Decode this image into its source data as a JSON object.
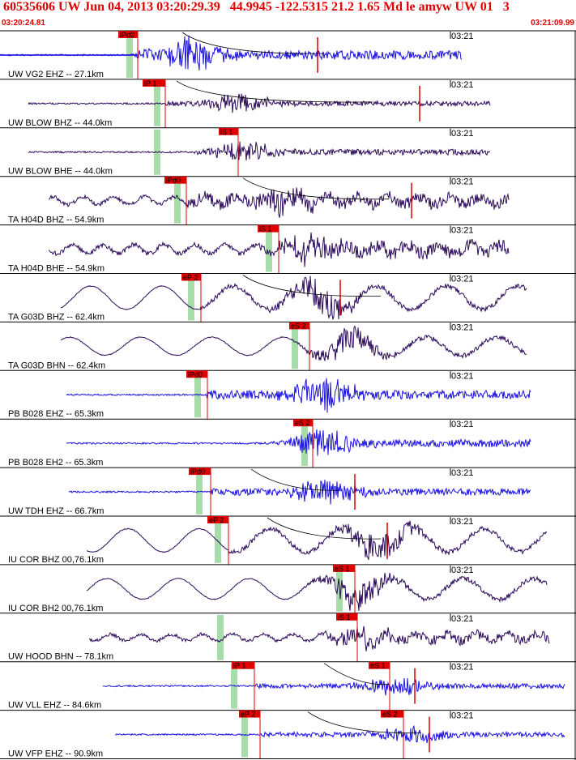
{
  "header": {
    "title": "60535606 UW Jun 04, 2013 03:20:29.39   44.9945 -122.5315 21.2 1.65 Md le amyw UW 01   3",
    "start_time": "03:20:24.81",
    "end_time": "03:21:09.99"
  },
  "chart_data": {
    "type": "line",
    "x_axis": {
      "start": "03:20:24.81",
      "end": "03:21:09.99",
      "tick_label": "03:21"
    },
    "colors": {
      "dark_trace": "#2b0a5a",
      "blue_trace": "#1a10e0",
      "pick": "#e00000",
      "window": "#a8dca8",
      "grid": "#000000"
    },
    "traces": [
      {
        "label": "UW VG2 EHZ -- 27.1km",
        "color": "blue_trace",
        "picks": [
          {
            "label": "iPd0"
          }
        ]
      },
      {
        "label": "UW BLOW BHZ -- 44.0km",
        "color": "dark_trace",
        "picks": [
          {
            "label": "iP 1"
          }
        ]
      },
      {
        "label": "UW BLOW BHE -- 44.0km",
        "color": "dark_trace",
        "picks": [
          {
            "label": "iS 1"
          }
        ]
      },
      {
        "label": "TA H04D BHZ -- 54.9km",
        "color": "dark_trace",
        "picks": [
          {
            "label": "iPd0"
          }
        ]
      },
      {
        "label": "TA H04D BHE -- 54.9km",
        "color": "dark_trace",
        "picks": [
          {
            "label": "iS 1"
          }
        ]
      },
      {
        "label": "TA G03D BHZ -- 62.4km",
        "color": "dark_trace",
        "picks": [
          {
            "label": "eP 2"
          }
        ]
      },
      {
        "label": "TA G03D BHN -- 62.4km",
        "color": "dark_trace",
        "picks": [
          {
            "label": "eS 2"
          }
        ]
      },
      {
        "label": "PB B028 EHZ -- 65.3km",
        "color": "blue_trace",
        "picks": [
          {
            "label": "iPd0"
          }
        ]
      },
      {
        "label": "PB B028 EH2 -- 65.3km",
        "color": "blue_trace",
        "picks": [
          {
            "label": "eS 2"
          }
        ]
      },
      {
        "label": "UW TDH EHZ -- 66.7km",
        "color": "blue_trace",
        "picks": [
          {
            "label": "iPd0"
          }
        ]
      },
      {
        "label": "IU COR BHZ 00,76.1km",
        "color": "dark_trace",
        "picks": [
          {
            "label": "eP 2"
          }
        ]
      },
      {
        "label": "IU COR BH2 00,76.1km",
        "color": "dark_trace",
        "picks": [
          {
            "label": "eS 1"
          }
        ]
      },
      {
        "label": "UW HOOD BHN -- 78.1km",
        "color": "dark_trace",
        "picks": [
          {
            "label": "iS 1"
          }
        ]
      },
      {
        "label": "UW VLL EHZ -- 84.6km",
        "color": "blue_trace",
        "picks": [
          {
            "label": "iP 1"
          },
          {
            "label": "eS 1"
          }
        ]
      },
      {
        "label": "UW VFP EHZ -- 90.9km",
        "color": "blue_trace",
        "picks": [
          {
            "label": "eP 2"
          },
          {
            "label": "eS 2"
          }
        ]
      }
    ]
  }
}
